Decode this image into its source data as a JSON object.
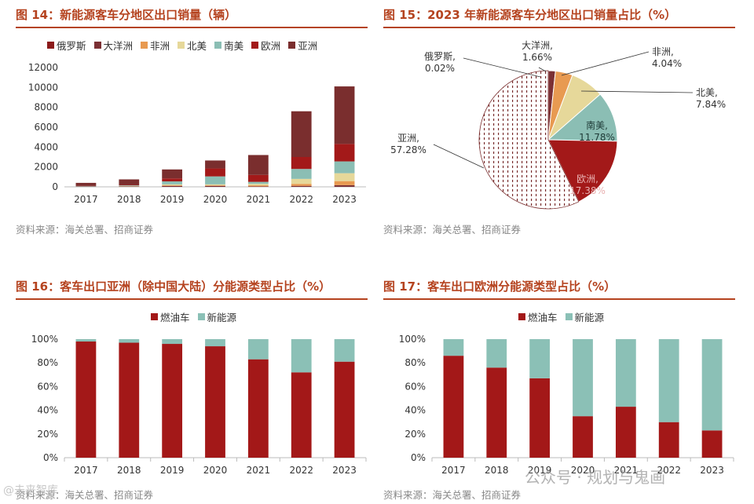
{
  "colors": {
    "russia": "#8b1a1a",
    "oceania": "#7b3034",
    "africa": "#e89a51",
    "north_america": "#e6d89a",
    "south_america": "#8bbeb4",
    "europe": "#a31919",
    "asia": "#7a2e2e",
    "fuel": "#a31818",
    "nev": "#8bc0b6",
    "title": "#b5431f"
  },
  "panels": {
    "fig14": {
      "title": "图 14：新能源客车分地区出口销量（辆）",
      "source": "资料来源：海关总署、招商证券",
      "legend": [
        "俄罗斯",
        "大洋洲",
        "非洲",
        "北美",
        "南美",
        "欧洲",
        "亚洲"
      ]
    },
    "fig15": {
      "title": "图 15：2023 年新能源客车分地区出口销量占比（%）",
      "source": "资料来源：海关总署、招商证券",
      "labels": {
        "russia": [
          "俄罗斯,",
          "0.02%"
        ],
        "oceania": [
          "大洋洲,",
          "1.66%"
        ],
        "africa": [
          "非洲,",
          "4.04%"
        ],
        "north_america": [
          "北美,",
          "7.84%"
        ],
        "south_america": [
          "南美,",
          "11.78%"
        ],
        "europe": [
          "欧洲,",
          "17.38%"
        ],
        "asia": [
          "亚洲,",
          "57.28%"
        ]
      }
    },
    "fig16": {
      "title": "图 16：客车出口亚洲（除中国大陆）分能源类型占比（%）",
      "source": "资料来源：海关总署、招商证券",
      "legend": [
        "燃油车",
        "新能源"
      ]
    },
    "fig17": {
      "title": "图 17：客车出口欧洲分能源类型占比（%）",
      "source": "资料来源：海关总署、招商证券",
      "legend": [
        "燃油车",
        "新能源"
      ]
    }
  },
  "watermark": {
    "main": "公众号 · 规划与鬼画",
    "corner": "@未来智库"
  },
  "chart_data": [
    {
      "id": "fig14",
      "type": "bar",
      "stacked": true,
      "title": "新能源客车分地区出口销量（辆）",
      "categories": [
        "2017",
        "2018",
        "2019",
        "2020",
        "2021",
        "2022",
        "2023"
      ],
      "ylim": [
        0,
        12000
      ],
      "yticks": [
        0,
        2000,
        4000,
        6000,
        8000,
        10000,
        12000
      ],
      "series": [
        {
          "name": "俄罗斯",
          "key": "russia",
          "values": [
            0,
            0,
            0,
            0,
            0,
            0,
            2
          ]
        },
        {
          "name": "大洋洲",
          "key": "oceania",
          "values": [
            0,
            50,
            100,
            100,
            50,
            100,
            168
          ]
        },
        {
          "name": "非洲",
          "key": "africa",
          "values": [
            0,
            0,
            50,
            50,
            100,
            200,
            408
          ]
        },
        {
          "name": "北美",
          "key": "north_america",
          "values": [
            0,
            50,
            100,
            100,
            150,
            500,
            792
          ]
        },
        {
          "name": "南美",
          "key": "south_america",
          "values": [
            50,
            50,
            300,
            800,
            200,
            1000,
            1190
          ]
        },
        {
          "name": "欧洲",
          "key": "europe",
          "values": [
            50,
            50,
            300,
            800,
            700,
            1200,
            1755
          ]
        },
        {
          "name": "亚洲",
          "key": "asia",
          "values": [
            300,
            550,
            900,
            800,
            2000,
            4600,
            5785
          ]
        }
      ]
    },
    {
      "id": "fig15",
      "type": "pie",
      "title": "2023 年新能源客车分地区出口销量占比（%）",
      "slices": [
        {
          "name": "俄罗斯",
          "key": "russia",
          "value": 0.02
        },
        {
          "name": "大洋洲",
          "key": "oceania",
          "value": 1.66
        },
        {
          "name": "非洲",
          "key": "africa",
          "value": 4.04
        },
        {
          "name": "北美",
          "key": "north_america",
          "value": 7.84
        },
        {
          "name": "南美",
          "key": "south_america",
          "value": 11.78
        },
        {
          "name": "欧洲",
          "key": "europe",
          "value": 17.38
        },
        {
          "name": "亚洲",
          "key": "asia",
          "value": 57.28
        }
      ]
    },
    {
      "id": "fig16",
      "type": "bar",
      "stacked": true,
      "percent": true,
      "title": "客车出口亚洲（除中国大陆）分能源类型占比（%）",
      "categories": [
        "2017",
        "2018",
        "2019",
        "2020",
        "2021",
        "2022",
        "2023"
      ],
      "ylim": [
        0,
        100
      ],
      "yticks": [
        0,
        20,
        40,
        60,
        80,
        100
      ],
      "series": [
        {
          "name": "燃油车",
          "key": "fuel",
          "values": [
            98,
            97,
            96,
            94,
            83,
            72,
            81
          ]
        },
        {
          "name": "新能源",
          "key": "nev",
          "values": [
            2,
            3,
            4,
            6,
            17,
            28,
            19
          ]
        }
      ]
    },
    {
      "id": "fig17",
      "type": "bar",
      "stacked": true,
      "percent": true,
      "title": "客车出口欧洲分能源类型占比（%）",
      "categories": [
        "2017",
        "2018",
        "2019",
        "2020",
        "2021",
        "2022",
        "2023"
      ],
      "ylim": [
        0,
        100
      ],
      "yticks": [
        0,
        20,
        40,
        60,
        80,
        100
      ],
      "series": [
        {
          "name": "燃油车",
          "key": "fuel",
          "values": [
            86,
            76,
            67,
            35,
            43,
            30,
            23
          ]
        },
        {
          "name": "新能源",
          "key": "nev",
          "values": [
            14,
            24,
            33,
            65,
            57,
            70,
            77
          ]
        }
      ]
    }
  ]
}
